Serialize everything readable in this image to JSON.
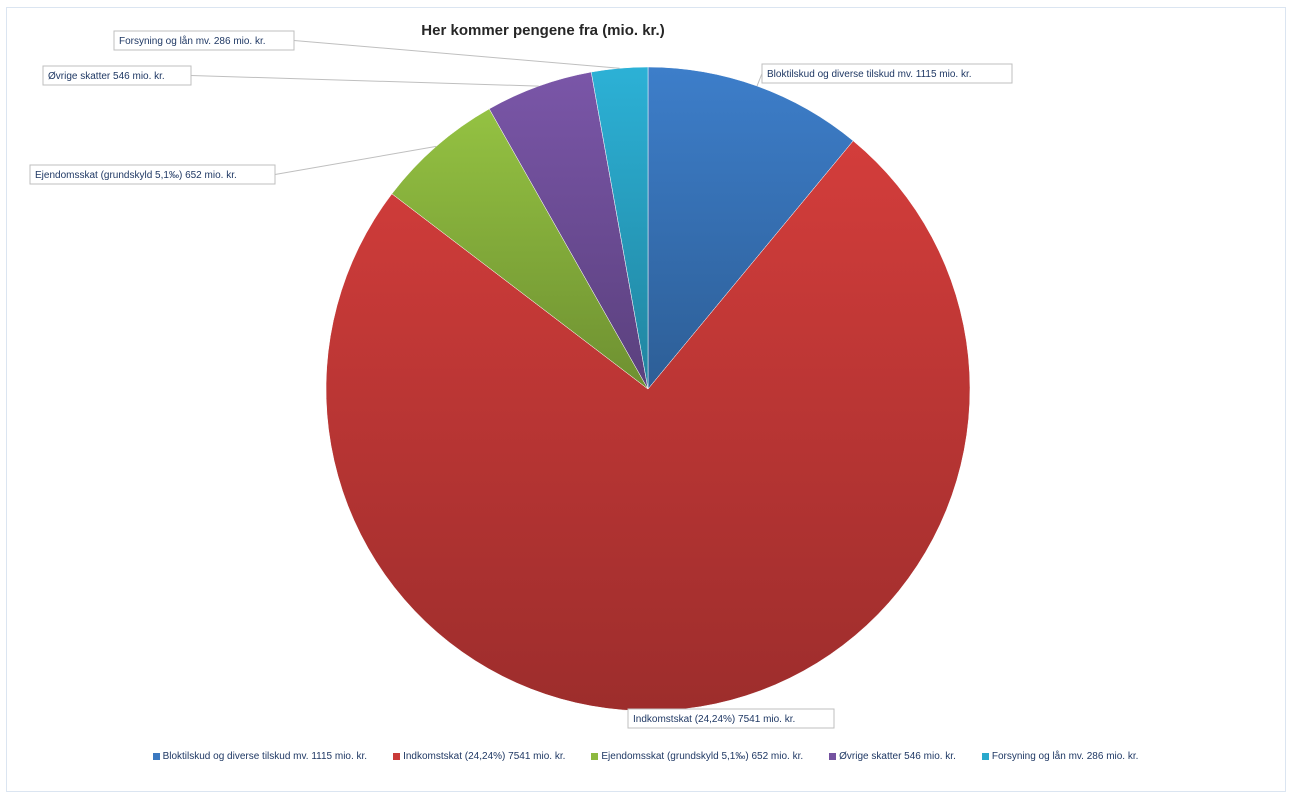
{
  "chart_data": {
    "type": "pie",
    "title": "Her kommer pengene fra (mio. kr.)",
    "legend_position": "bottom",
    "categories": [
      "Bloktilskud og diverse tilskud mv.  1115 mio. kr.",
      "Indkomstskat (24,24%)  7541 mio. kr.",
      "Ejendomsskat (grundskyld 5,1‰)  652 mio. kr.",
      "Øvrige skatter 546 mio. kr.",
      "Forsyning og lån mv. 286 mio. kr."
    ],
    "values": [
      1115,
      7541,
      652,
      546,
      286
    ],
    "colors": [
      "#3a78c0",
      "#c93a38",
      "#8db93f",
      "#7452a0",
      "#2aa9cc"
    ],
    "data_labels": [
      "Bloktilskud og diverse tilskud mv.  1115 mio. kr.",
      "Indkomstskat (24,24%)  7541 mio. kr.",
      "Ejendomsskat (grundskyld 5,1‰)  652 mio. kr.",
      "Øvrige skatter 546 mio. kr.",
      "Forsyning og lån mv. 286 mio. kr."
    ]
  }
}
